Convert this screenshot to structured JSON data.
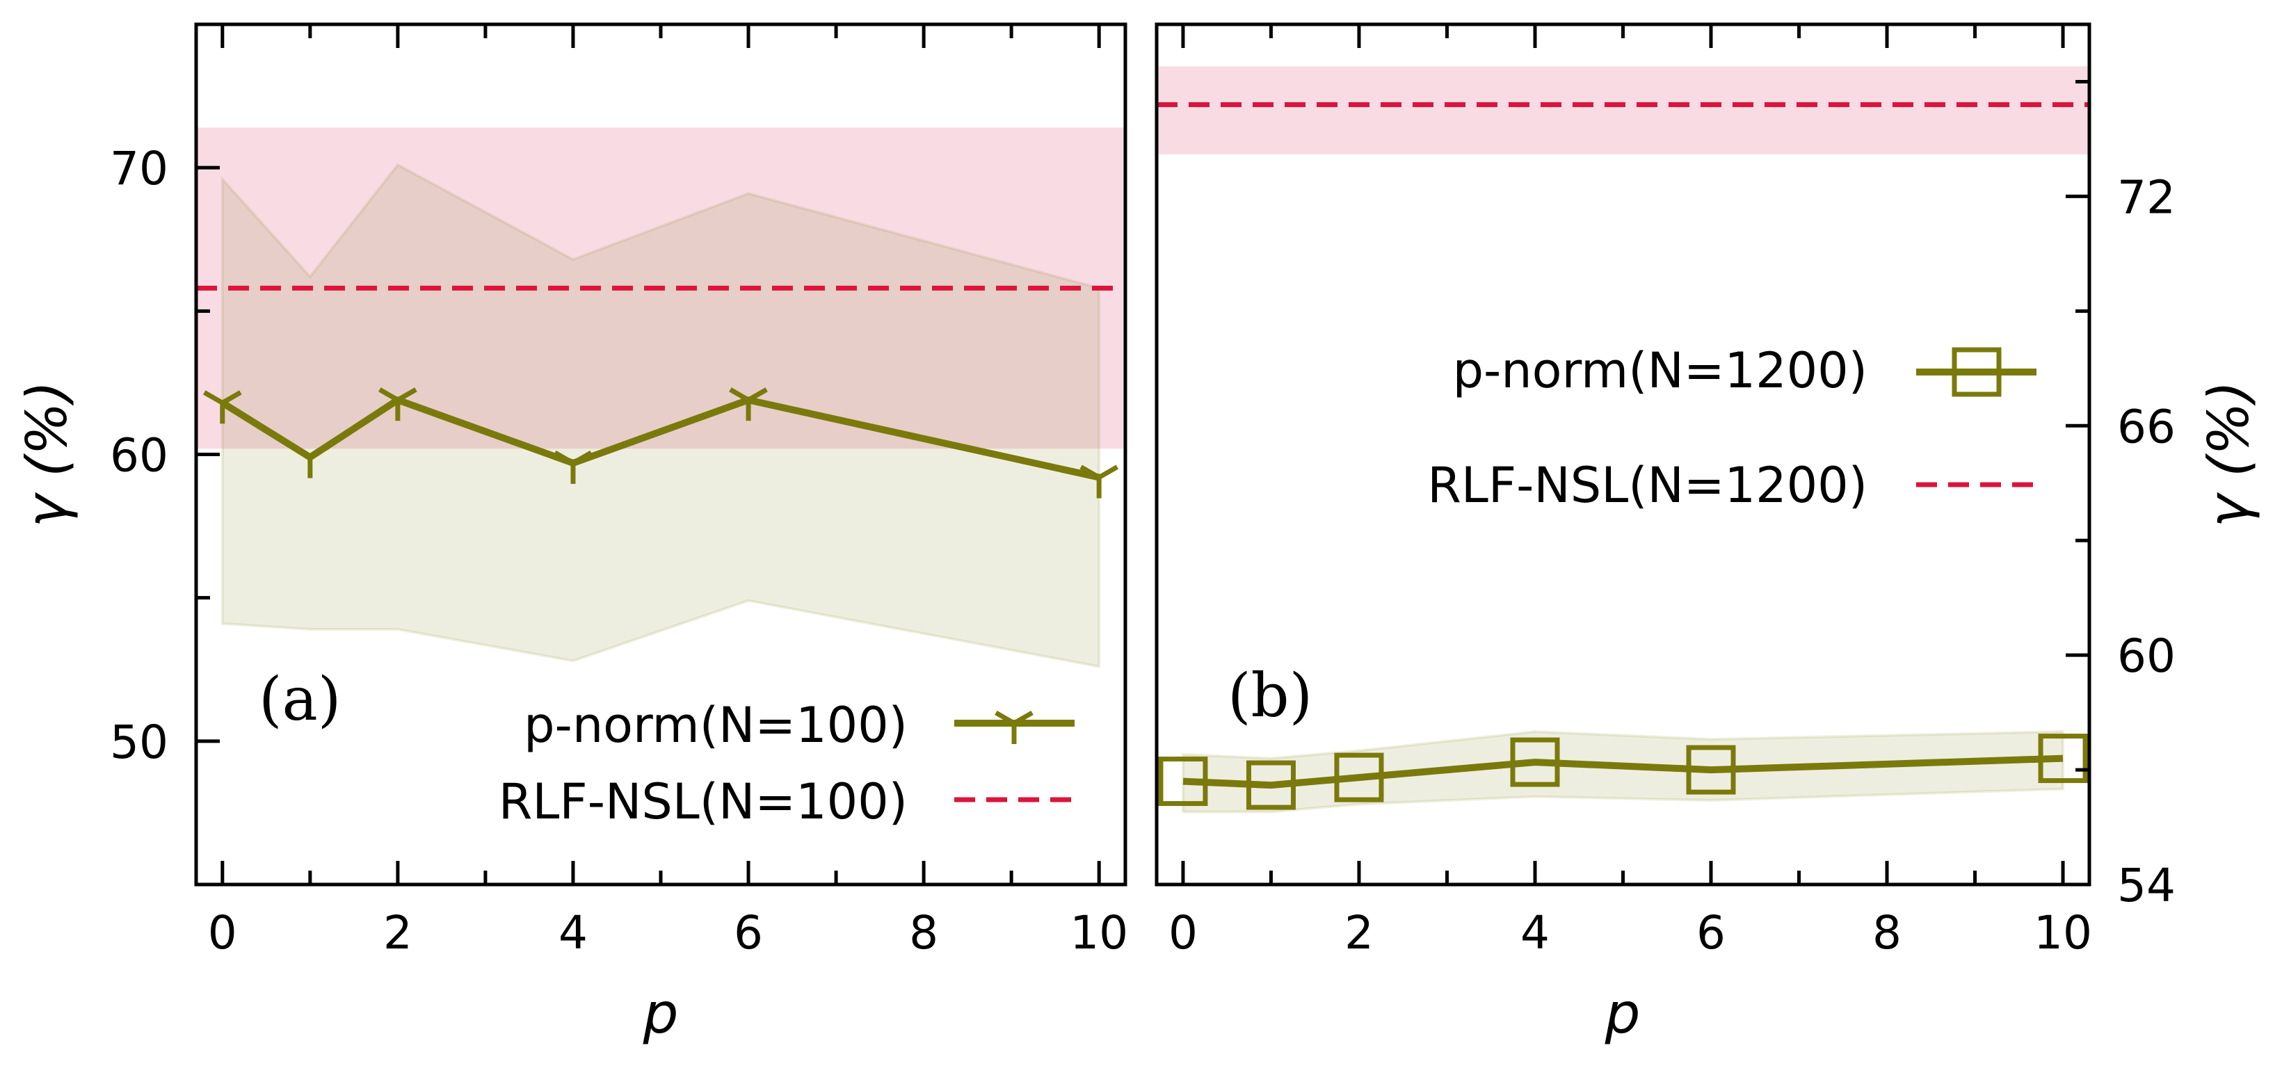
{
  "colors": {
    "olive": "#7a7a0c",
    "olive_fill": "#eaeac8",
    "crimson": "#dc143c",
    "pink_band": "#f9dbe4",
    "axis": "#000000"
  },
  "chart_data": [
    {
      "panel": "(a)",
      "type": "line",
      "xlabel": "p",
      "ylabel": "γ  (%)",
      "xlim": [
        -0.3,
        10.3
      ],
      "ylim": [
        45,
        75
      ],
      "xticks": [
        "0",
        "2",
        "4",
        "6",
        "8",
        "10"
      ],
      "yticks": [
        "50",
        "60",
        "70"
      ],
      "series": [
        {
          "name": "p-norm(N=100)",
          "marker": "tri-down",
          "x": [
            0,
            1,
            2,
            4,
            6,
            10
          ],
          "values": [
            61.8,
            59.9,
            61.9,
            59.7,
            61.9,
            59.2
          ],
          "band_upper": [
            69.6,
            66.2,
            70.1,
            66.8,
            69.1,
            65.8
          ],
          "band_lower": [
            54.1,
            53.9,
            53.9,
            52.8,
            54.9,
            52.6
          ]
        },
        {
          "name": "RLF-NSL(N=100)",
          "style": "dashed",
          "value": 65.8,
          "band": [
            60.2,
            71.4
          ]
        }
      ],
      "legend": "lower-right"
    },
    {
      "panel": "(b)",
      "type": "line",
      "xlabel": "p",
      "ylabel": "γ  (%)",
      "ylabel_side": "right",
      "xlim": [
        -0.3,
        10.3
      ],
      "ylim": [
        54,
        76.5
      ],
      "xticks": [
        "0",
        "2",
        "4",
        "6",
        "8",
        "10"
      ],
      "yticks": [
        "54",
        "60",
        "66",
        "72"
      ],
      "series": [
        {
          "name": "p-norm(N=1200)",
          "marker": "square",
          "x": [
            0,
            1,
            2,
            4,
            6,
            10
          ],
          "values": [
            56.7,
            56.6,
            56.8,
            57.2,
            57.0,
            57.3
          ],
          "band_upper": [
            57.4,
            57.3,
            57.5,
            58.0,
            57.8,
            58.0
          ],
          "band_lower": [
            55.9,
            55.9,
            56.1,
            56.3,
            56.2,
            56.5
          ]
        },
        {
          "name": "RLF-NSL(N=1200)",
          "style": "dashed",
          "value": 74.4,
          "band": [
            73.1,
            75.4
          ]
        }
      ],
      "legend": "upper-right"
    }
  ]
}
